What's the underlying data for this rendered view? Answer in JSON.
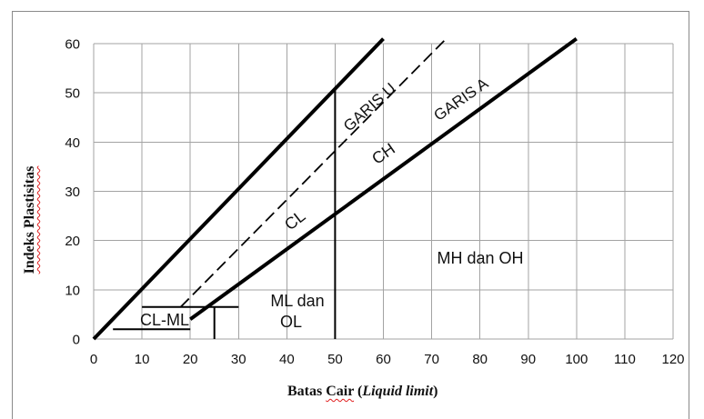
{
  "chart_data": {
    "type": "line",
    "xlabel": {
      "word1": "Batas",
      "word2": "Cair",
      "open": "(",
      "italic": "Liquid limit",
      "close": ")"
    },
    "ylabel": "Indeks Plastisitas",
    "xlim": [
      0,
      120
    ],
    "ylim": [
      0,
      60
    ],
    "xticks": [
      0,
      10,
      20,
      30,
      40,
      50,
      60,
      70,
      80,
      90,
      100,
      110,
      120
    ],
    "yticks": [
      0,
      10,
      20,
      30,
      40,
      50,
      60
    ],
    "grid": true,
    "series": [
      {
        "name": "GARIS U",
        "style": "dashed",
        "x": [
          18,
          73
        ],
        "y": [
          6.5,
          61
        ]
      },
      {
        "name": "GARIS A",
        "style": "solid",
        "x": [
          20,
          100
        ],
        "y": [
          4,
          61
        ]
      },
      {
        "style": "solid",
        "x": [
          0,
          60
        ],
        "y": [
          0,
          61
        ]
      },
      {
        "style": "solid",
        "x": [
          50,
          50
        ],
        "y": [
          0,
          51
        ]
      },
      {
        "style": "solid",
        "x": [
          10,
          30
        ],
        "y": [
          6.5,
          6.5
        ]
      },
      {
        "style": "solid",
        "x": [
          4,
          20
        ],
        "y": [
          2,
          2
        ]
      },
      {
        "style": "solid",
        "x": [
          25,
          25
        ],
        "y": [
          0,
          6.5
        ]
      }
    ],
    "region_labels": [
      {
        "lines": [
          "CL"
        ]
      },
      {
        "lines": [
          "CH"
        ]
      },
      {
        "lines": [
          "MH dan OH"
        ]
      },
      {
        "lines": [
          "ML dan",
          "OL"
        ]
      },
      {
        "lines": [
          "CL-ML"
        ]
      }
    ]
  }
}
